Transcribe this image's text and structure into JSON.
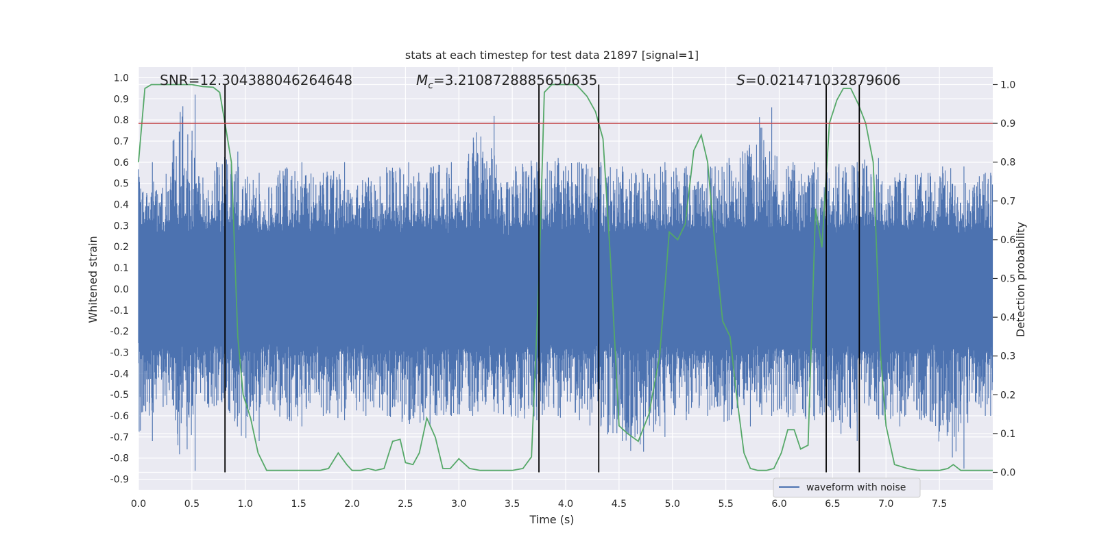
{
  "chart_data": {
    "type": "line",
    "title": "stats at each timestep for test data 21897 [signal=1]",
    "xlabel": "Time (s)",
    "ylabel_left": "Whitened strain",
    "ylabel_right": "Detection probability",
    "xlim": [
      0.0,
      8.0
    ],
    "ylim_left": [
      -0.95,
      1.05
    ],
    "ylim_right": [
      -0.045,
      1.045
    ],
    "grid": true,
    "background": "#EAEAF2",
    "x_ticks": [
      "0.0",
      "0.5",
      "1.0",
      "1.5",
      "2.0",
      "2.5",
      "3.0",
      "3.5",
      "4.0",
      "4.5",
      "5.0",
      "5.5",
      "6.0",
      "6.5",
      "7.0",
      "7.5"
    ],
    "x_tick_values": [
      0.0,
      0.5,
      1.0,
      1.5,
      2.0,
      2.5,
      3.0,
      3.5,
      4.0,
      4.5,
      5.0,
      5.5,
      6.0,
      6.5,
      7.0,
      7.5
    ],
    "y_left_ticks": [
      "1.0",
      "0.9",
      "0.8",
      "0.7",
      "0.6",
      "0.5",
      "0.4",
      "0.3",
      "0.2",
      "0.1",
      "0.0",
      "-0.1",
      "-0.2",
      "-0.3",
      "-0.4",
      "-0.5",
      "-0.6",
      "-0.7",
      "-0.8",
      "-0.9"
    ],
    "y_left_tick_values": [
      1.0,
      0.9,
      0.8,
      0.7,
      0.6,
      0.5,
      0.4,
      0.3,
      0.2,
      0.1,
      0.0,
      -0.1,
      -0.2,
      -0.3,
      -0.4,
      -0.5,
      -0.6,
      -0.7,
      -0.8,
      -0.9
    ],
    "y_right_ticks": [
      "1.0",
      "0.9",
      "0.8",
      "0.7",
      "0.6",
      "0.5",
      "0.4",
      "0.3",
      "0.2",
      "0.1",
      "0.0"
    ],
    "y_right_tick_values": [
      1.0,
      0.9,
      0.8,
      0.7,
      0.6,
      0.5,
      0.4,
      0.3,
      0.2,
      0.1,
      0.0
    ],
    "annotations": [
      {
        "text": "SNR=12.304388046264648",
        "x": 0.2
      },
      {
        "text": "=3.2108728885650635",
        "math_prefix": "M",
        "math_sub": "c",
        "x": 2.6
      },
      {
        "text": "=0.021471032879606",
        "math_prefix": "S",
        "x": 5.6
      }
    ],
    "threshold": {
      "y_right": 0.9,
      "color": "#C44E52"
    },
    "vlines": [
      0.81,
      3.75,
      4.31,
      6.44,
      6.75
    ],
    "vline_color": "#000000",
    "waveform": {
      "name": "waveform with noise",
      "color": "#4C72B0",
      "envelope": {
        "t": [
          0.0,
          0.2,
          0.4,
          0.6,
          0.8,
          1.0,
          1.2,
          1.4,
          1.6,
          1.8,
          2.0,
          2.2,
          2.4,
          2.6,
          2.8,
          3.0,
          3.2,
          3.4,
          3.6,
          3.8,
          4.0,
          4.2,
          4.4,
          4.6,
          4.8,
          5.0,
          5.2,
          5.4,
          5.6,
          5.8,
          6.0,
          6.2,
          6.4,
          6.6,
          6.8,
          7.0,
          7.2,
          7.4,
          7.6,
          7.8,
          8.0
        ],
        "max": [
          0.6,
          0.48,
          0.92,
          0.6,
          0.65,
          0.55,
          0.5,
          0.6,
          0.55,
          0.6,
          0.5,
          0.55,
          0.6,
          0.55,
          0.6,
          0.55,
          0.82,
          0.58,
          0.6,
          0.62,
          0.6,
          0.6,
          0.58,
          0.55,
          0.6,
          0.58,
          0.6,
          0.62,
          0.58,
          0.86,
          0.6,
          0.6,
          0.58,
          0.6,
          0.62,
          0.55,
          0.55,
          0.58,
          0.58,
          0.55,
          0.55
        ],
        "min": [
          -0.72,
          -0.55,
          -0.86,
          -0.55,
          -0.6,
          -0.72,
          -0.55,
          -0.65,
          -0.6,
          -0.62,
          -0.6,
          -0.6,
          -0.62,
          -0.65,
          -0.6,
          -0.6,
          -0.58,
          -0.6,
          -0.62,
          -0.6,
          -0.62,
          -0.65,
          -0.72,
          -0.77,
          -0.7,
          -0.62,
          -0.6,
          -0.62,
          -0.65,
          -0.6,
          -0.6,
          -0.62,
          -0.6,
          -0.72,
          -0.6,
          -0.65,
          -0.62,
          -0.62,
          -0.85,
          -0.6,
          -0.6
        ]
      }
    },
    "detection": {
      "color": "#55A868",
      "t": [
        0.0,
        0.06,
        0.12,
        0.2,
        0.3,
        0.4,
        0.5,
        0.6,
        0.7,
        0.76,
        0.81,
        0.87,
        0.93,
        0.98,
        1.05,
        1.12,
        1.2,
        1.3,
        1.4,
        1.5,
        1.6,
        1.7,
        1.78,
        1.87,
        1.95,
        2.0,
        2.08,
        2.15,
        2.22,
        2.3,
        2.38,
        2.45,
        2.5,
        2.57,
        2.63,
        2.7,
        2.78,
        2.85,
        2.92,
        3.0,
        3.1,
        3.2,
        3.3,
        3.4,
        3.5,
        3.6,
        3.68,
        3.75,
        3.8,
        3.87,
        3.93,
        4.0,
        4.1,
        4.2,
        4.28,
        4.35,
        4.42,
        4.5,
        4.58,
        4.68,
        4.78,
        4.88,
        4.97,
        5.05,
        5.12,
        5.2,
        5.27,
        5.33,
        5.4,
        5.47,
        5.54,
        5.6,
        5.67,
        5.73,
        5.8,
        5.88,
        5.95,
        6.02,
        6.08,
        6.14,
        6.2,
        6.27,
        6.34,
        6.4,
        6.47,
        6.54,
        6.6,
        6.67,
        6.74,
        6.81,
        6.88,
        6.95,
        7.0,
        7.08,
        7.2,
        7.3,
        7.4,
        7.5,
        7.58,
        7.63,
        7.7,
        7.8,
        7.9,
        8.0
      ],
      "p": [
        0.8,
        0.99,
        1.0,
        1.0,
        1.0,
        1.0,
        1.0,
        0.995,
        0.993,
        0.98,
        0.9,
        0.8,
        0.35,
        0.2,
        0.14,
        0.05,
        0.005,
        0.005,
        0.005,
        0.005,
        0.005,
        0.005,
        0.01,
        0.05,
        0.02,
        0.005,
        0.005,
        0.01,
        0.005,
        0.01,
        0.08,
        0.085,
        0.025,
        0.02,
        0.05,
        0.14,
        0.09,
        0.01,
        0.01,
        0.035,
        0.01,
        0.005,
        0.005,
        0.005,
        0.005,
        0.01,
        0.04,
        0.5,
        0.98,
        1.0,
        1.0,
        1.0,
        1.0,
        0.97,
        0.93,
        0.86,
        0.55,
        0.12,
        0.1,
        0.08,
        0.15,
        0.3,
        0.62,
        0.6,
        0.64,
        0.83,
        0.87,
        0.8,
        0.58,
        0.39,
        0.35,
        0.2,
        0.05,
        0.01,
        0.005,
        0.005,
        0.01,
        0.05,
        0.11,
        0.11,
        0.06,
        0.07,
        0.68,
        0.58,
        0.9,
        0.96,
        0.99,
        0.99,
        0.95,
        0.9,
        0.8,
        0.3,
        0.12,
        0.02,
        0.01,
        0.005,
        0.005,
        0.005,
        0.01,
        0.02,
        0.005,
        0.005,
        0.005,
        0.005
      ]
    },
    "legend": {
      "entries": [
        "waveform with noise"
      ],
      "placement": "lower-right"
    }
  }
}
